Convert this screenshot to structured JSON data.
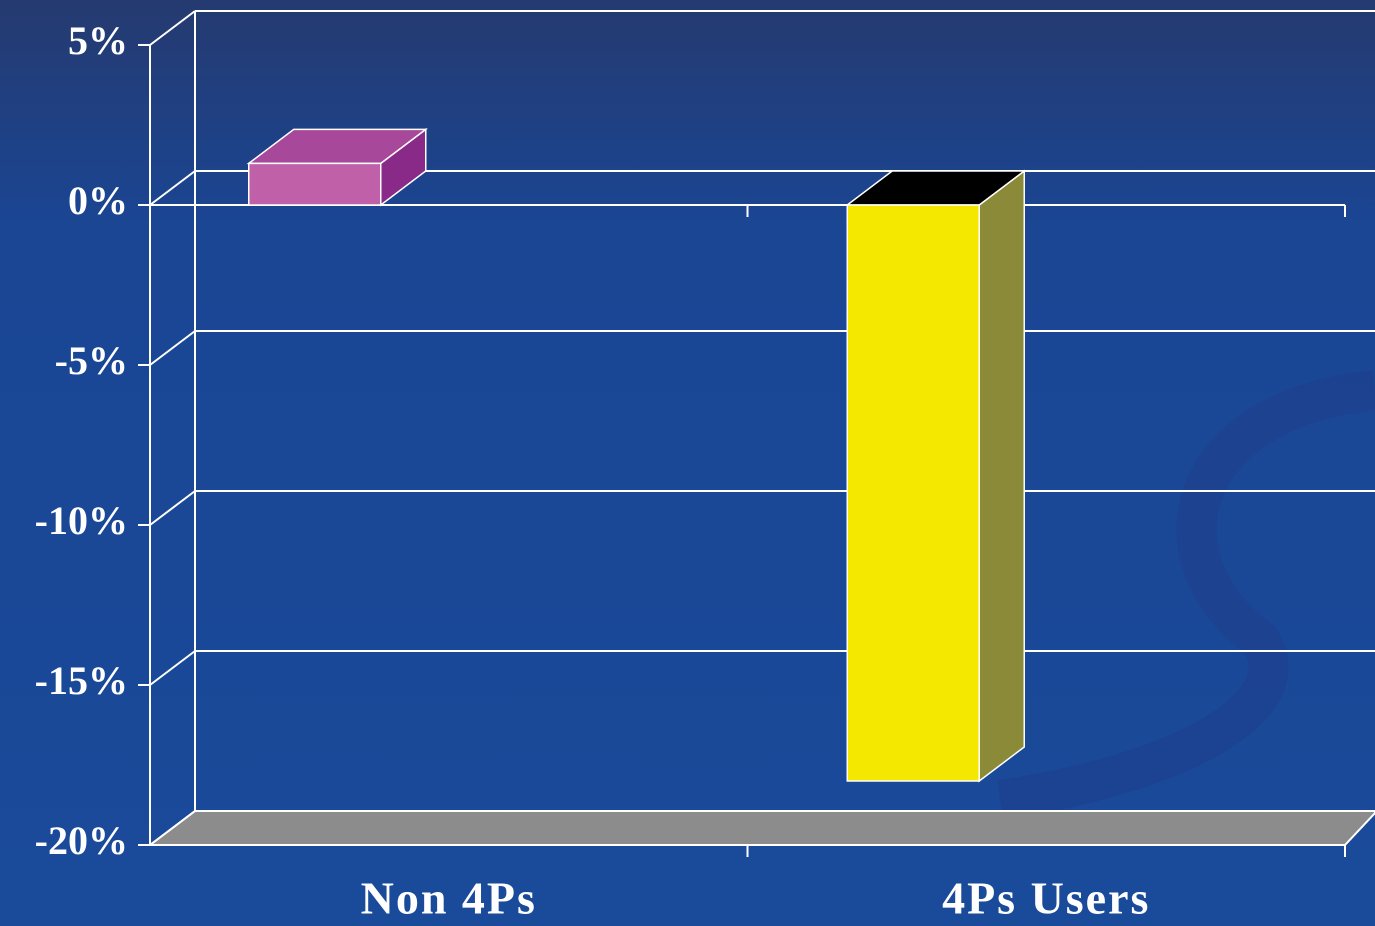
{
  "chart_data": {
    "type": "bar3d",
    "categories": [
      "Non 4Ps",
      "4Ps Users"
    ],
    "values": [
      1.3,
      -18
    ],
    "colors": [
      {
        "front": "#c060a8",
        "top": "#a8489a",
        "side": "#8a2a88"
      },
      {
        "front": "#f5e800",
        "top": "#000000",
        "side": "#8a8a38"
      }
    ],
    "ylim": [
      -20,
      5
    ],
    "yticks": [
      {
        "value": -20,
        "label": "-20%"
      },
      {
        "value": -15,
        "label": "-15%"
      },
      {
        "value": -10,
        "label": "-10%"
      },
      {
        "value": -5,
        "label": "-5%"
      },
      {
        "value": 0,
        "label": "0%"
      },
      {
        "value": 5,
        "label": "5%"
      }
    ],
    "grid": true
  }
}
